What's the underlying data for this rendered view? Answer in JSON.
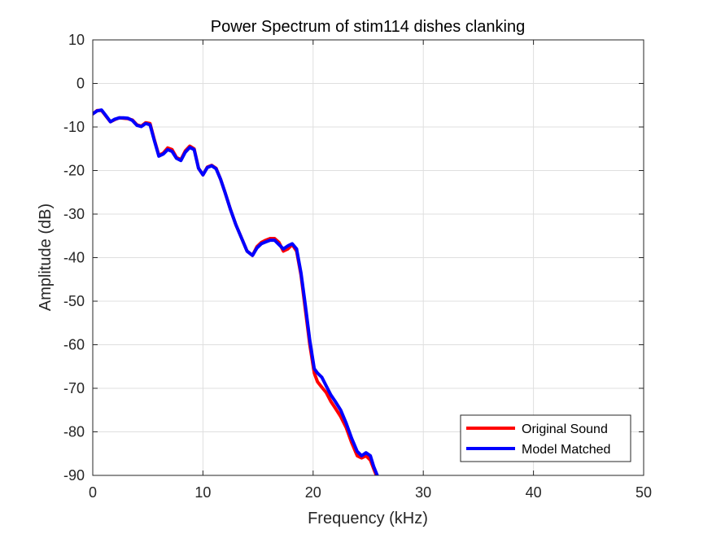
{
  "chart_data": {
    "type": "line",
    "title": "Power Spectrum of stim114 dishes clanking",
    "xlabel": "Frequency (kHz)",
    "ylabel": "Amplitude (dB)",
    "xlim": [
      0,
      50
    ],
    "ylim": [
      -90,
      10
    ],
    "xticks": [
      0,
      10,
      20,
      30,
      40,
      50
    ],
    "yticks": [
      10,
      0,
      -10,
      -20,
      -30,
      -40,
      -50,
      -60,
      -70,
      -80,
      -90
    ],
    "grid": true,
    "legend_position": "bottom-right",
    "series": [
      {
        "name": "Original Sound",
        "color": "#ff0000",
        "x": [
          0,
          0.4,
          0.8,
          1.2,
          1.6,
          2.0,
          2.4,
          2.8,
          3.2,
          3.6,
          4.0,
          4.4,
          4.8,
          5.2,
          5.6,
          6.0,
          6.4,
          6.8,
          7.2,
          7.6,
          8.0,
          8.4,
          8.8,
          9.2,
          9.6,
          10.0,
          10.4,
          10.8,
          11.2,
          11.6,
          12.0,
          12.5,
          13.0,
          13.5,
          14.0,
          14.5,
          14.9,
          15.3,
          15.7,
          16.1,
          16.5,
          16.9,
          17.3,
          17.7,
          18.1,
          18.5,
          18.9,
          19.3,
          19.7,
          20.1,
          20.4,
          20.8,
          21.2,
          21.6,
          22.0,
          22.5,
          23.0,
          23.5,
          24.0,
          24.4,
          24.8,
          25.2,
          25.5,
          25.9
        ],
        "y": [
          -7.0,
          -6.2,
          -6.2,
          -7.5,
          -8.8,
          -8.3,
          -7.9,
          -8.0,
          -8.1,
          -8.4,
          -9.5,
          -9.8,
          -9.0,
          -9.2,
          -13.0,
          -16.5,
          -16.0,
          -14.8,
          -15.2,
          -17.0,
          -17.5,
          -15.5,
          -14.4,
          -15.0,
          -19.5,
          -21.0,
          -19.2,
          -18.8,
          -19.5,
          -22.0,
          -25.0,
          -29.0,
          -32.5,
          -35.5,
          -38.5,
          -39.5,
          -37.5,
          -36.5,
          -36.0,
          -35.6,
          -35.6,
          -36.5,
          -38.5,
          -38.0,
          -37.0,
          -38.5,
          -44.0,
          -52.0,
          -60.0,
          -66.5,
          -68.5,
          -69.8,
          -71.0,
          -73.0,
          -74.5,
          -76.5,
          -79.0,
          -82.5,
          -85.5,
          -86.0,
          -85.5,
          -86.5,
          -88.5,
          -91.0
        ]
      },
      {
        "name": "Model Matched",
        "color": "#0000ff",
        "x": [
          0,
          0.4,
          0.8,
          1.2,
          1.6,
          2.0,
          2.4,
          2.8,
          3.2,
          3.6,
          4.0,
          4.4,
          4.8,
          5.2,
          5.6,
          6.0,
          6.4,
          6.8,
          7.2,
          7.6,
          8.0,
          8.4,
          8.8,
          9.2,
          9.6,
          10.0,
          10.4,
          10.8,
          11.2,
          11.6,
          12.0,
          12.5,
          13.0,
          13.5,
          14.0,
          14.5,
          14.9,
          15.3,
          15.7,
          16.1,
          16.5,
          16.9,
          17.3,
          17.7,
          18.1,
          18.5,
          18.9,
          19.3,
          19.7,
          20.1,
          20.4,
          20.8,
          21.2,
          21.6,
          22.0,
          22.5,
          23.0,
          23.5,
          24.0,
          24.4,
          24.8,
          25.2,
          25.5,
          25.9
        ],
        "y": [
          -7.0,
          -6.3,
          -6.1,
          -7.4,
          -8.8,
          -8.2,
          -7.9,
          -7.9,
          -8.0,
          -8.5,
          -9.6,
          -9.9,
          -9.2,
          -9.5,
          -13.2,
          -16.7,
          -16.2,
          -15.2,
          -15.6,
          -17.2,
          -17.7,
          -15.8,
          -14.7,
          -15.2,
          -19.5,
          -21.0,
          -19.3,
          -18.9,
          -19.6,
          -22.0,
          -25.0,
          -29.0,
          -32.5,
          -35.5,
          -38.5,
          -39.5,
          -37.8,
          -36.8,
          -36.4,
          -36.0,
          -36.0,
          -37.0,
          -38.0,
          -37.3,
          -36.8,
          -38.0,
          -43.5,
          -51.0,
          -59.0,
          -65.5,
          -66.5,
          -67.5,
          -69.5,
          -71.5,
          -73.0,
          -75.0,
          -78.0,
          -81.5,
          -84.5,
          -85.5,
          -84.8,
          -85.5,
          -88.0,
          -90.5
        ]
      }
    ]
  }
}
